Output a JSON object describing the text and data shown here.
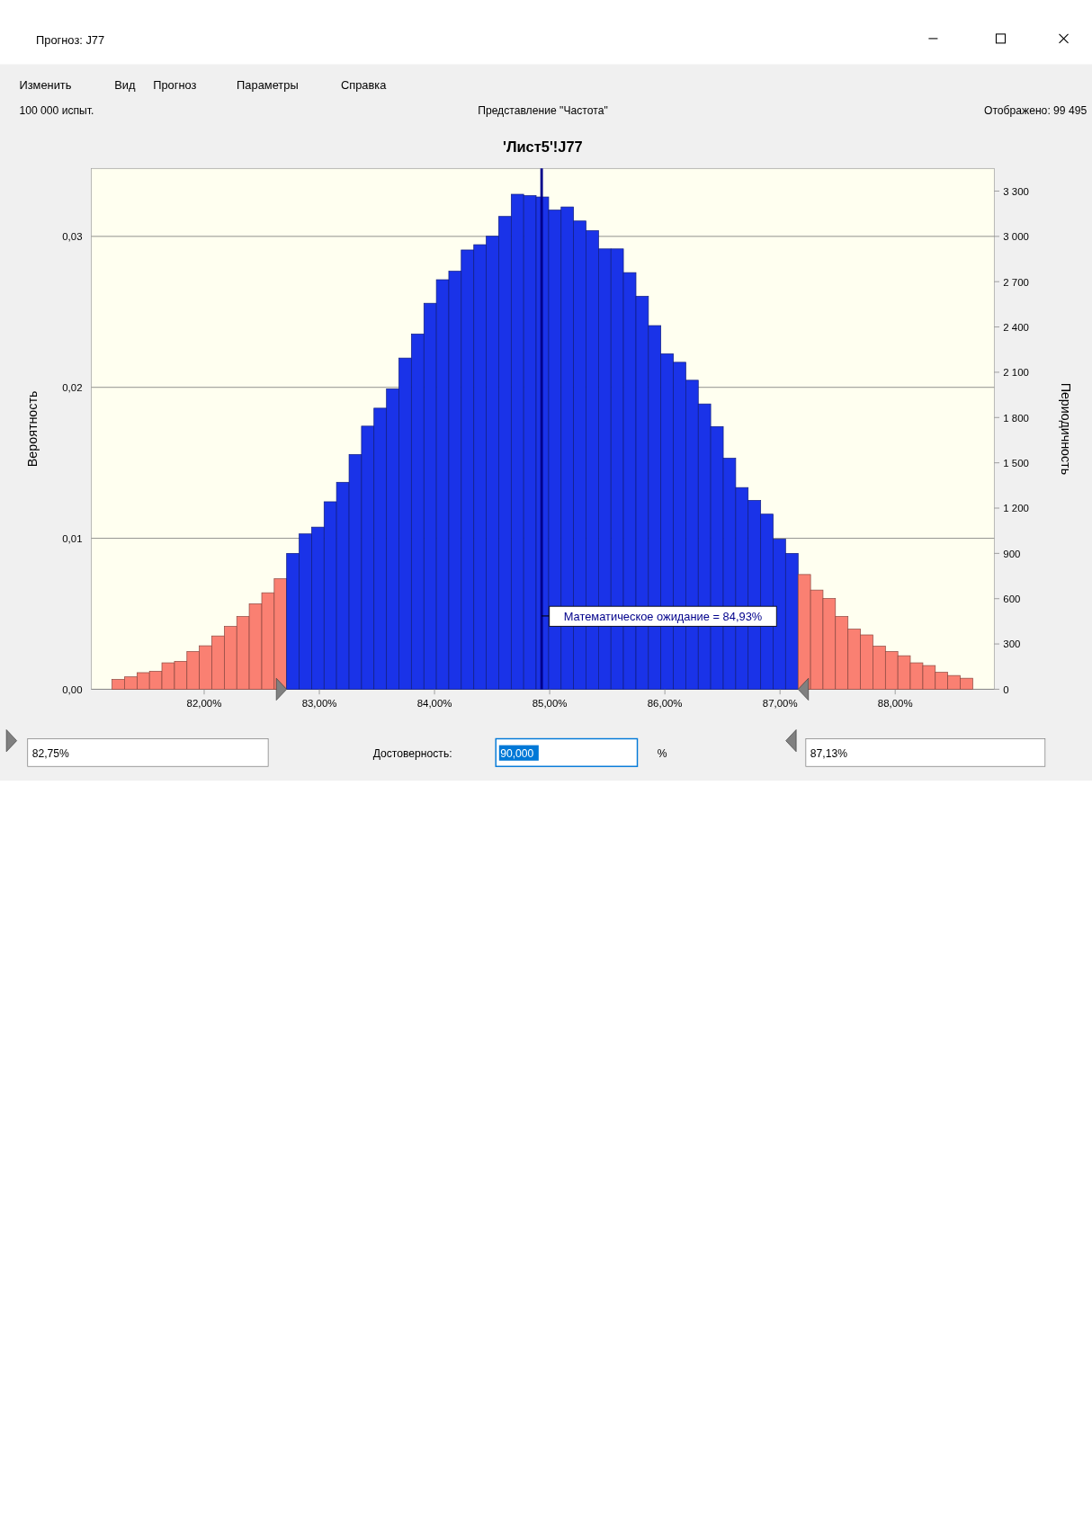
{
  "chart_data": {
    "type": "histogram",
    "title": "'Лист5'!J77",
    "subtitle": "Представление \"Частота\"",
    "ylabel": "Вероятность",
    "y2label": "Периодичность",
    "bins": [
      81.2,
      81.308,
      81.417,
      81.525,
      81.633,
      81.742,
      81.85,
      81.958,
      82.066,
      82.175,
      82.283,
      82.391,
      82.5,
      82.608,
      82.716,
      82.825,
      82.933,
      83.041,
      83.149,
      83.258,
      83.366,
      83.474,
      83.583,
      83.691,
      83.799,
      83.908,
      84.016,
      84.124,
      84.232,
      84.341,
      84.449,
      84.557,
      84.666,
      84.774,
      84.882,
      84.991,
      85.099,
      85.207,
      85.315,
      85.424,
      85.532,
      85.64,
      85.749,
      85.857,
      85.965,
      86.074,
      86.182,
      86.29,
      86.398,
      86.507,
      86.615,
      86.723,
      86.832,
      86.94,
      87.048,
      87.157,
      87.265,
      87.373,
      87.481,
      87.59,
      87.698,
      87.806,
      87.915,
      88.023,
      88.131,
      88.24,
      88.348,
      88.456,
      88.564,
      88.673
    ],
    "series": [
      {
        "axis": "y2",
        "values": [
          65,
          82,
          110,
          119,
          175,
          185,
          250,
          288,
          353,
          416,
          482,
          566,
          639,
          732,
          900,
          1029,
          1074,
          1242,
          1371,
          1555,
          1743,
          1862,
          1990,
          2194,
          2353,
          2557,
          2713,
          2769,
          2910,
          2945,
          3001,
          3132,
          3279,
          3270,
          3261,
          3174,
          3195,
          3102,
          3038,
          2917,
          2917,
          2760,
          2603,
          2409,
          2222,
          2166,
          2047,
          1890,
          1740,
          1530,
          1336,
          1251,
          1160,
          994,
          900,
          760,
          657,
          601,
          482,
          398,
          360,
          285,
          250,
          222,
          175,
          157,
          112,
          91,
          73
        ]
      }
    ],
    "colors": [
      "#fa8072",
      "#fa8072",
      "#fa8072",
      "#fa8072",
      "#fa8072",
      "#fa8072",
      "#fa8072",
      "#fa8072",
      "#fa8072",
      "#fa8072",
      "#fa8072",
      "#fa8072",
      "#fa8072",
      "#fa8072",
      "#1a33e8",
      "#1a33e8",
      "#1a33e8",
      "#1a33e8",
      "#1a33e8",
      "#1a33e8",
      "#1a33e8",
      "#1a33e8",
      "#1a33e8",
      "#1a33e8",
      "#1a33e8",
      "#1a33e8",
      "#1a33e8",
      "#1a33e8",
      "#1a33e8",
      "#1a33e8",
      "#1a33e8",
      "#1a33e8",
      "#1a33e8",
      "#1a33e8",
      "#1a33e8",
      "#1a33e8",
      "#1a33e8",
      "#1a33e8",
      "#1a33e8",
      "#1a33e8",
      "#1a33e8",
      "#1a33e8",
      "#1a33e8",
      "#1a33e8",
      "#1a33e8",
      "#1a33e8",
      "#1a33e8",
      "#1a33e8",
      "#1a33e8",
      "#1a33e8",
      "#1a33e8",
      "#1a33e8",
      "#1a33e8",
      "#1a33e8",
      "#1a33e8",
      "#fa8072",
      "#fa8072",
      "#fa8072",
      "#fa8072",
      "#fa8072",
      "#fa8072",
      "#fa8072",
      "#fa8072",
      "#fa8072",
      "#fa8072",
      "#fa8072",
      "#fa8072",
      "#fa8072",
      "#fa8072"
    ],
    "xlim": [
      81.02,
      88.86
    ],
    "xticks": [
      {
        "value": 82,
        "label": "82,00%"
      },
      {
        "value": 83,
        "label": "83,00%"
      },
      {
        "value": 84,
        "label": "84,00%"
      },
      {
        "value": 85,
        "label": "85,00%"
      },
      {
        "value": 86,
        "label": "86,00%"
      },
      {
        "value": 87,
        "label": "87,00%"
      },
      {
        "value": 88,
        "label": "88,00%"
      }
    ],
    "ylim": [
      0,
      0.0345
    ],
    "yticks": [
      {
        "value": 0,
        "label": "0,00"
      },
      {
        "value": 0.01,
        "label": "0,01"
      },
      {
        "value": 0.02,
        "label": "0,02"
      },
      {
        "value": 0.03,
        "label": "0,03"
      }
    ],
    "y2lim": [
      0,
      3450
    ],
    "y2ticks": [
      0,
      300,
      600,
      900,
      {
        "value": 1200,
        "label": "1 200"
      },
      {
        "value": 1500,
        "label": "1 500"
      },
      {
        "value": 1800,
        "label": "1 800"
      },
      {
        "value": 2100,
        "label": "2 100"
      },
      {
        "value": 2400,
        "label": "2 400"
      },
      {
        "value": 2700,
        "label": "2 700"
      },
      {
        "value": 3000,
        "label": "3 000"
      },
      {
        "value": 3300,
        "label": "3 300"
      }
    ],
    "grid": "y",
    "ref_lines": [
      {
        "axis": "x",
        "value": 84.93,
        "label": "Математическое ожидание = 84,93%",
        "color": "#00008b"
      }
    ],
    "annotations": [
      "Прогноз: J77",
      "Изменить",
      "Вид",
      "Прогноз",
      "Параметры",
      "Справка",
      "100 000 испыт.",
      "Отображено: 99 495",
      "82,75%",
      "Достоверность:",
      "90,000",
      "%",
      "87,13%"
    ]
  }
}
